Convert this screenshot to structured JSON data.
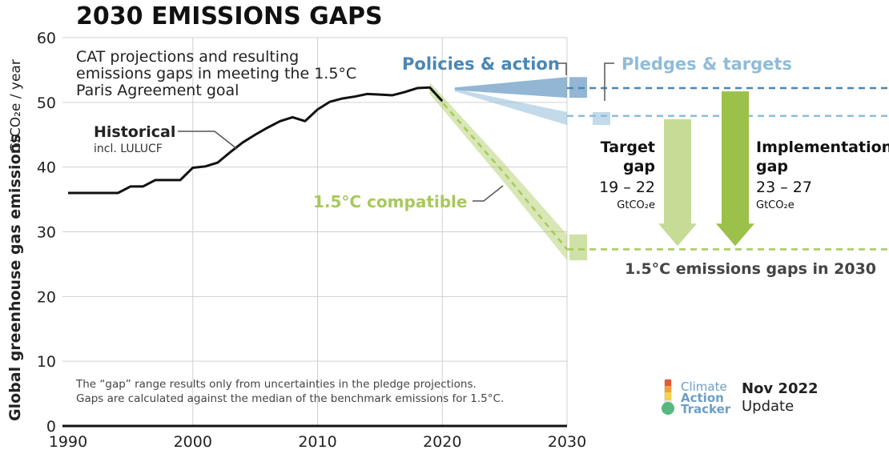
{
  "title": "2030 EMISSIONS GAPS",
  "subtitle_lines": [
    "CAT projections and resulting",
    "emissions gaps in meeting the 1.5°C",
    "Paris Agreement goal"
  ],
  "ylabel_main": "Global greenhouse gas emissions",
  "ylabel_unit": "GtCO₂e / year",
  "historical_label": "Historical",
  "historical_sublabel": "incl. LULUCF",
  "policies_label": "Policies & action",
  "pledges_label": "Pledges & targets",
  "compatible_label": "1.5°C compatible",
  "target_gap": {
    "title_lines": [
      "Target",
      "gap"
    ],
    "range": "19 – 22",
    "unit": "GtCO₂e"
  },
  "implementation_gap": {
    "title_lines": [
      "Implementation",
      "gap"
    ],
    "range": "23 – 27",
    "unit": "GtCO₂e"
  },
  "gaps_label": "1.5°C emissions gaps in 2030",
  "footnote_lines": [
    "The “gap” range results only from uncertainties in the pledge projections.",
    "Gaps are calculated against the median of the benchmark emissions for 1.5°C."
  ],
  "logo": {
    "lines": [
      "Climate",
      "Action",
      "Tracker"
    ]
  },
  "update": {
    "month": "Nov 2022",
    "word": "Update"
  },
  "colors": {
    "historical": "#111111",
    "policies": "#4a86b5",
    "pledges": "#8fbcd8",
    "compatible": "#a8c95c",
    "target_arrow": "#c5db96",
    "implementation_arrow": "#9bc14a",
    "grid": "#d0d0d0",
    "text": "#333333"
  },
  "chart_data": {
    "type": "line",
    "x_ticks": [
      1990,
      2000,
      2010,
      2020,
      2030
    ],
    "y_ticks": [
      0,
      10,
      20,
      30,
      40,
      50,
      60
    ],
    "xlim": [
      1990,
      2030
    ],
    "ylim": [
      0,
      60
    ],
    "historical": {
      "x": [
        1990,
        1991,
        1992,
        1993,
        1994,
        1995,
        1996,
        1997,
        1998,
        1999,
        2000,
        2001,
        2002,
        2003,
        2004,
        2005,
        2006,
        2007,
        2008,
        2009,
        2010,
        2011,
        2012,
        2013,
        2014,
        2015,
        2016,
        2017,
        2018,
        2019,
        2020
      ],
      "y": [
        36,
        36,
        36,
        36,
        36,
        37,
        37,
        38,
        38,
        38,
        39.9,
        40.1,
        40.7,
        42.3,
        43.8,
        45,
        46.1,
        47.1,
        47.7,
        47.1,
        48.9,
        50.1,
        50.6,
        50.9,
        51.3,
        51.2,
        51.1,
        51.6,
        52.2,
        52.3,
        50.2
      ]
    },
    "policies_action": {
      "x": [
        2021,
        2030
      ],
      "upper": [
        52.3,
        53.9
      ],
      "lower": [
        51.9,
        50.7
      ],
      "median": [
        52.1,
        52.2
      ]
    },
    "pledges_targets": {
      "x": [
        2021,
        2030
      ],
      "upper": [
        52.1,
        48.5
      ],
      "lower": [
        51.7,
        46.5
      ],
      "median": [
        51.9,
        47.9
      ]
    },
    "compatible_1_5C": {
      "x": [
        2019,
        2025,
        2030
      ],
      "upper": [
        53.1,
        40.5,
        29.6
      ],
      "lower": [
        51.3,
        37.5,
        25.6
      ],
      "median": [
        52.2,
        39.0,
        27.3
      ]
    }
  }
}
